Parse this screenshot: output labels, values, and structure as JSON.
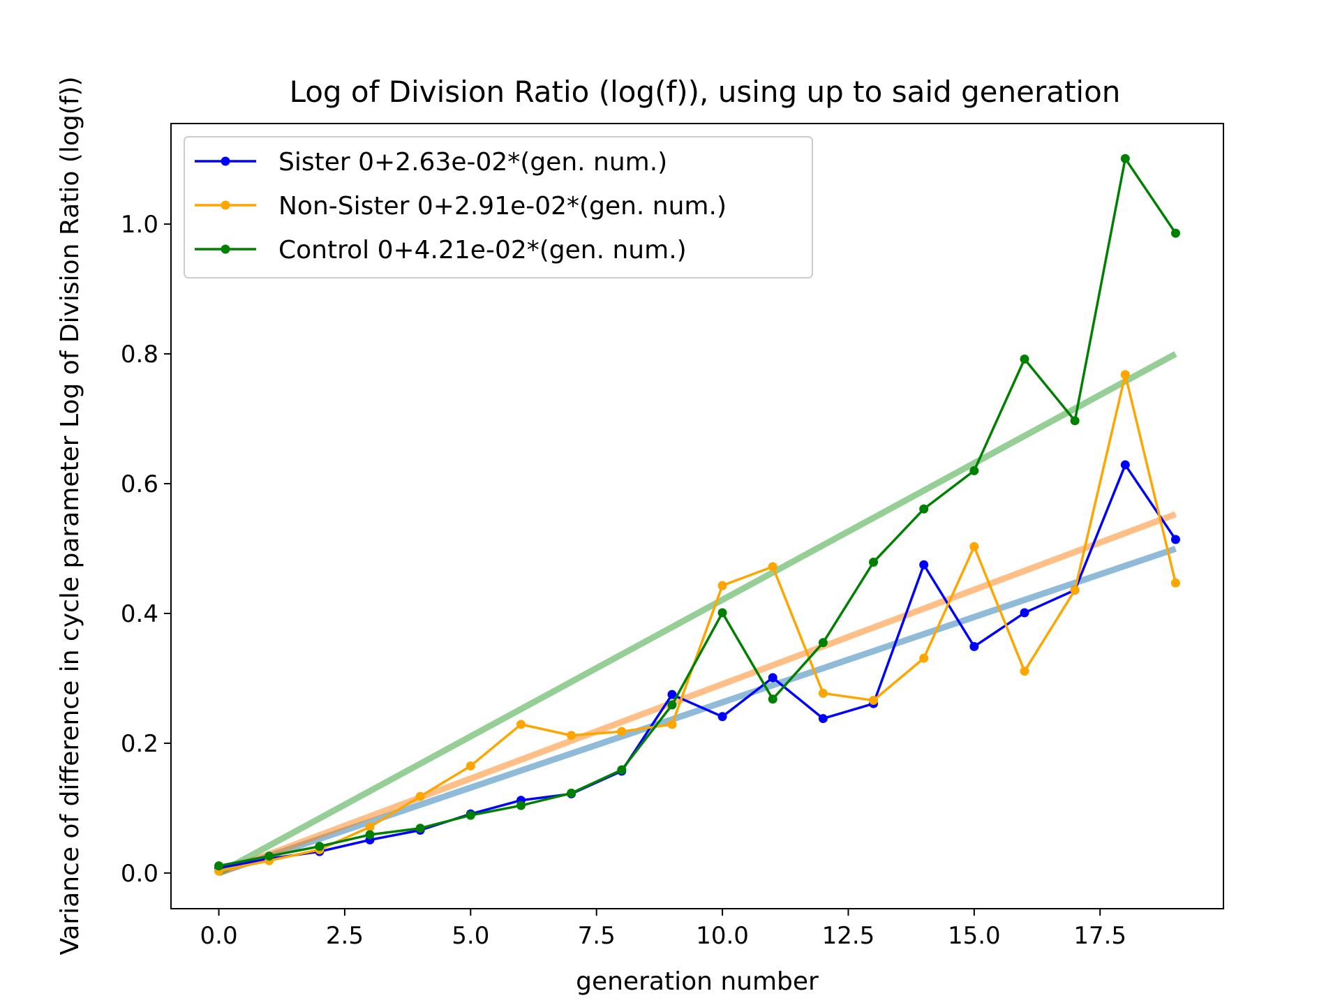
{
  "chart_data": {
    "type": "line",
    "title": "Log of Division Ratio (log(f)), using up to said generation",
    "xlabel": "generation number",
    "ylabel": "Variance of difference in cycle parameter Log of Division Ratio (log(f))",
    "xlim": [
      -0.95,
      19.95
    ],
    "ylim": [
      -0.055,
      1.155
    ],
    "xticks": [
      0.0,
      2.5,
      5.0,
      7.5,
      10.0,
      12.5,
      15.0,
      17.5
    ],
    "xtick_labels": [
      "0.0",
      "2.5",
      "5.0",
      "7.5",
      "10.0",
      "12.5",
      "15.0",
      "17.5"
    ],
    "yticks": [
      0.0,
      0.2,
      0.4,
      0.6,
      0.8,
      1.0
    ],
    "ytick_labels": [
      "0.0",
      "0.2",
      "0.4",
      "0.6",
      "0.8",
      "1.0"
    ],
    "grid": false,
    "legend_position": "top-left",
    "x": [
      0,
      1,
      2,
      3,
      4,
      5,
      6,
      7,
      8,
      9,
      10,
      11,
      12,
      13,
      14,
      15,
      16,
      17,
      18,
      19
    ],
    "series": [
      {
        "name": "Sister 0+2.63e-02*(gen. num.)",
        "color": "#0000ff",
        "fit_color": "#1f77b4",
        "fit_slope": 0.0263,
        "values": [
          0.008,
          0.022,
          0.033,
          0.051,
          0.066,
          0.091,
          0.112,
          0.122,
          0.157,
          0.275,
          0.241,
          0.301,
          0.238,
          0.261,
          0.475,
          0.349,
          0.401,
          0.436,
          0.629,
          0.514
        ]
      },
      {
        "name": "Non-Sister 0+2.91e-02*(gen. num.)",
        "color": "#ffa500",
        "fit_color": "#ff7f0e",
        "fit_slope": 0.0291,
        "values": [
          0.003,
          0.019,
          0.036,
          0.071,
          0.118,
          0.165,
          0.229,
          0.212,
          0.218,
          0.229,
          0.443,
          0.472,
          0.277,
          0.266,
          0.331,
          0.503,
          0.311,
          0.436,
          0.768,
          0.447
        ]
      },
      {
        "name": "Control 0+4.21e-02*(gen. num.)",
        "color": "#008000",
        "fit_color": "#2ca02c",
        "fit_slope": 0.0421,
        "values": [
          0.011,
          0.026,
          0.041,
          0.059,
          0.069,
          0.089,
          0.104,
          0.123,
          0.159,
          0.259,
          0.401,
          0.268,
          0.355,
          0.479,
          0.561,
          0.62,
          0.792,
          0.697,
          1.101,
          0.986
        ]
      }
    ]
  }
}
